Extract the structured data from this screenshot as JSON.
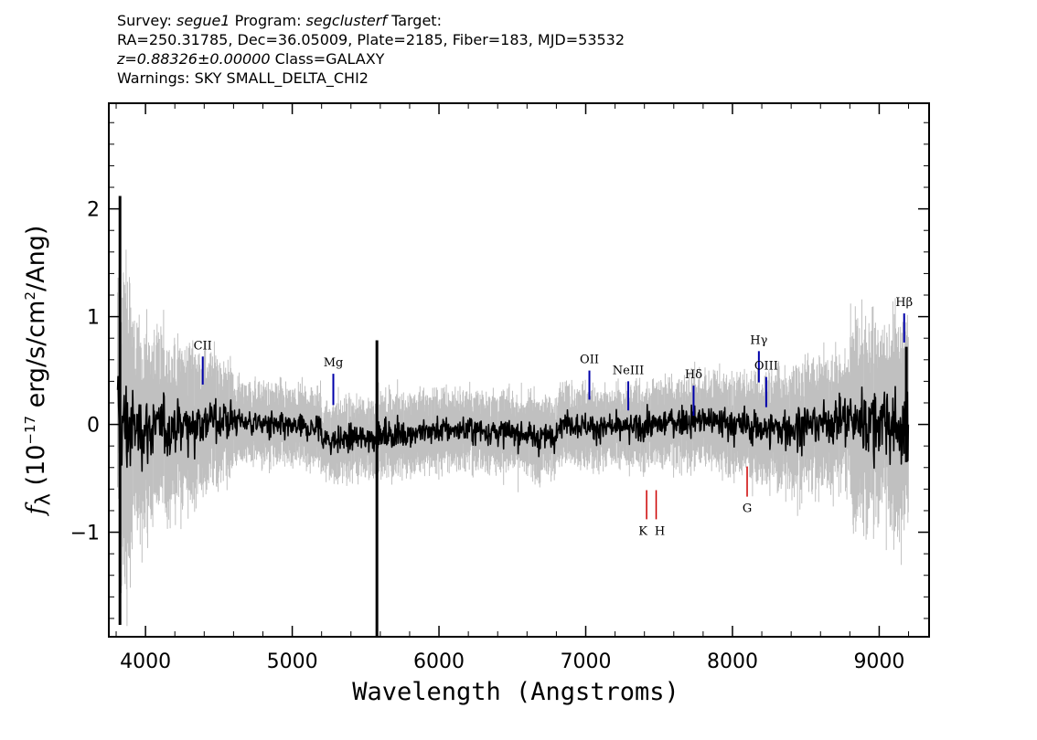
{
  "header": {
    "survey_label": "Survey:",
    "survey": "segue1",
    "program_label": "Program:",
    "program": "segclusterf",
    "target_label": "Target:",
    "line2": "RA=250.31785, Dec=36.05009, Plate=2185, Fiber=183, MJD=53532",
    "z_text": "z=0.88326±0.00000",
    "class_text": "Class=GALAXY",
    "warnings": "Warnings: SKY SMALL_DELTA_CHI2"
  },
  "chart_data": {
    "type": "line",
    "title": "",
    "xlabel": "Wavelength (Angstroms)",
    "ylabel_parts": {
      "symbol": "f",
      "sub": "λ",
      "pre": " (10",
      "exp": "−17",
      "mid": " erg/s/cm",
      "exp2": "2",
      "post": "/Ang)"
    },
    "xlim": [
      3750,
      9340
    ],
    "ylim": [
      -1.97,
      2.98
    ],
    "x_ticks": [
      4000,
      5000,
      6000,
      7000,
      8000,
      9000
    ],
    "x_tick_labels": [
      "4000",
      "5000",
      "6000",
      "7000",
      "8000",
      "9000"
    ],
    "y_ticks": [
      -1,
      0,
      1,
      2
    ],
    "y_tick_labels": [
      "−1",
      "0",
      "1",
      "2"
    ],
    "series": [
      {
        "role": "error envelope",
        "color": "#c0c0c0"
      },
      {
        "role": "flux",
        "color": "#000000"
      }
    ],
    "x_range": [
      3810,
      9200
    ],
    "spikes": [
      {
        "x": 5577,
        "y_top": 0.78,
        "y_bottom": -1.97
      },
      {
        "x": 3826,
        "y_top": 2.12,
        "y_bottom": -1.86
      },
      {
        "x": 9185,
        "y_top": 0.72,
        "y_bottom": -0.35
      }
    ],
    "emission_lines": [
      {
        "label": "CII",
        "x": 4390,
        "y_bottom": 0.37,
        "y_top": 0.63,
        "color": "#0000aa"
      },
      {
        "label": "Mg",
        "x": 5280,
        "y_bottom": 0.18,
        "y_top": 0.47,
        "color": "#0000aa"
      },
      {
        "label": "OII",
        "x": 7025,
        "y_bottom": 0.23,
        "y_top": 0.5,
        "color": "#0000aa"
      },
      {
        "label": "NeIII",
        "x": 7290,
        "y_bottom": 0.13,
        "y_top": 0.4,
        "color": "#0000aa"
      },
      {
        "label": "Hδ",
        "x": 7735,
        "y_bottom": 0.08,
        "y_top": 0.36,
        "color": "#0000aa"
      },
      {
        "label": "Hγ",
        "x": 8180,
        "y_bottom": 0.39,
        "y_top": 0.68,
        "color": "#0000aa"
      },
      {
        "label": "OIII",
        "x": 8230,
        "y_bottom": 0.16,
        "y_top": 0.44,
        "color": "#0000aa"
      },
      {
        "label": "Hβ",
        "x": 9170,
        "y_bottom": 0.76,
        "y_top": 1.03,
        "color": "#0000aa"
      }
    ],
    "absorption_lines": [
      {
        "label": "K",
        "x": 7415,
        "y_top": -0.61,
        "y_bottom": -0.88,
        "color": "#cc0000"
      },
      {
        "label": "H",
        "x": 7480,
        "y_top": -0.61,
        "y_bottom": -0.88,
        "color": "#cc0000"
      },
      {
        "label": "G",
        "x": 8100,
        "y_top": -0.39,
        "y_bottom": -0.67,
        "color": "#cc0000"
      }
    ]
  }
}
